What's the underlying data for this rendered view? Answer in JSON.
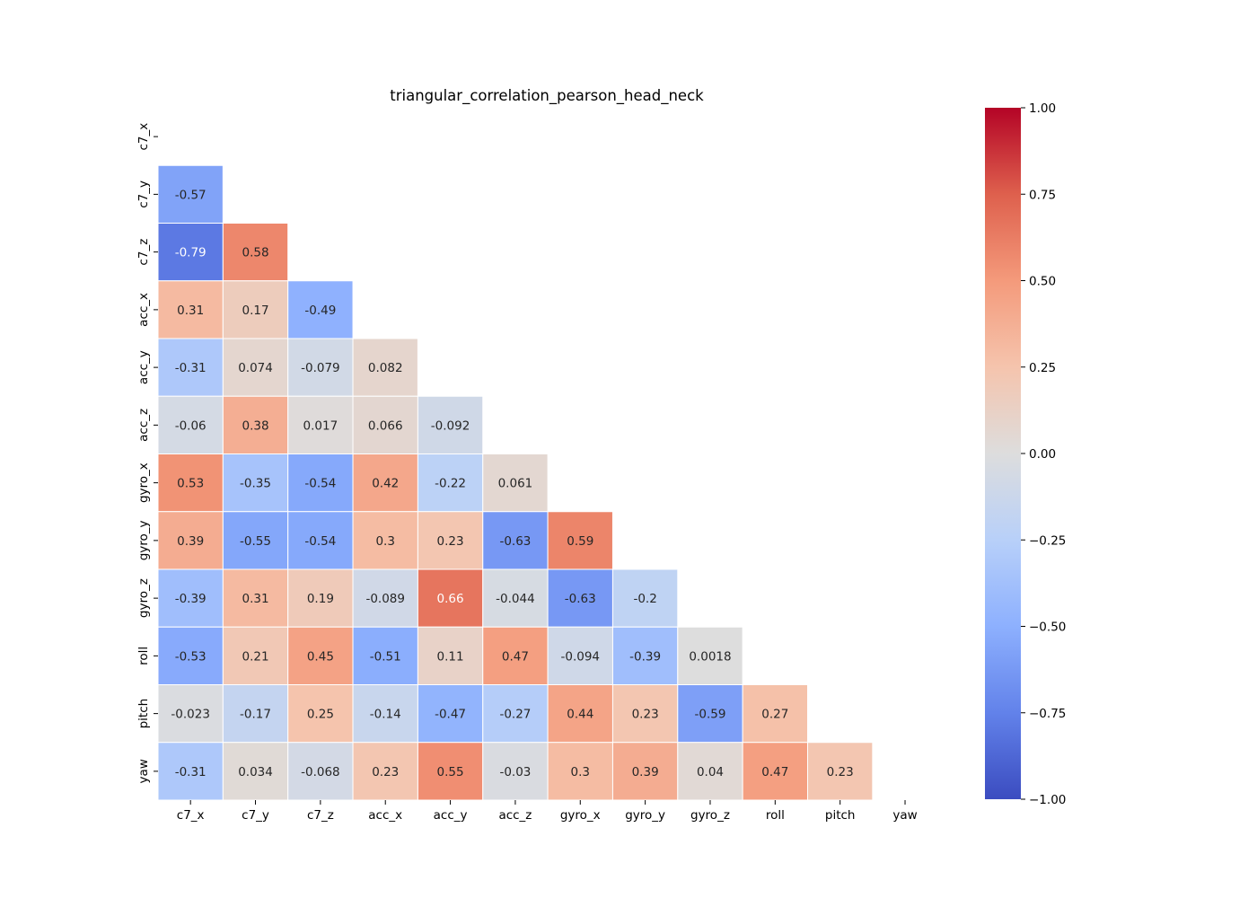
{
  "chart_data": {
    "type": "heatmap",
    "title": "triangular_correlation_pearson_head_neck",
    "labels": [
      "c7_x",
      "c7_y",
      "c7_z",
      "acc_x",
      "acc_y",
      "acc_z",
      "gyro_x",
      "gyro_y",
      "gyro_z",
      "roll",
      "pitch",
      "yaw"
    ],
    "mask": "upper-triangle-and-diagonal",
    "values": [
      [],
      [
        "-0.57"
      ],
      [
        "-0.79",
        "0.58"
      ],
      [
        "0.31",
        "0.17",
        "-0.49"
      ],
      [
        "-0.31",
        "0.074",
        "-0.079",
        "0.082"
      ],
      [
        "-0.06",
        "0.38",
        "0.017",
        "0.066",
        "-0.092"
      ],
      [
        "0.53",
        "-0.35",
        "-0.54",
        "0.42",
        "-0.22",
        "0.061"
      ],
      [
        "0.39",
        "-0.55",
        "-0.54",
        "0.3",
        "0.23",
        "-0.63",
        "0.59"
      ],
      [
        "-0.39",
        "0.31",
        "0.19",
        "-0.089",
        "0.66",
        "-0.044",
        "-0.63",
        "-0.2"
      ],
      [
        "-0.53",
        "0.21",
        "0.45",
        "-0.51",
        "0.11",
        "0.47",
        "-0.094",
        "-0.39",
        "0.0018"
      ],
      [
        "-0.023",
        "-0.17",
        "0.25",
        "-0.14",
        "-0.47",
        "-0.27",
        "0.44",
        "0.23",
        "-0.59",
        "0.27"
      ],
      [
        "-0.31",
        "0.034",
        "-0.068",
        "0.23",
        "0.55",
        "-0.03",
        "0.3",
        "0.39",
        "0.04",
        "0.47",
        "0.23"
      ]
    ],
    "colormap": "coolwarm",
    "colorbar": {
      "vmin": -1.0,
      "vmax": 1.0,
      "ticks": [
        1.0,
        0.75,
        0.5,
        0.25,
        0.0,
        -0.25,
        -0.5,
        -0.75,
        -1.0
      ],
      "tick_labels": [
        "1.00",
        "0.75",
        "0.50",
        "0.25",
        "0.00",
        "−0.25",
        "−0.50",
        "−0.75",
        "−1.00"
      ]
    },
    "grid": false
  }
}
